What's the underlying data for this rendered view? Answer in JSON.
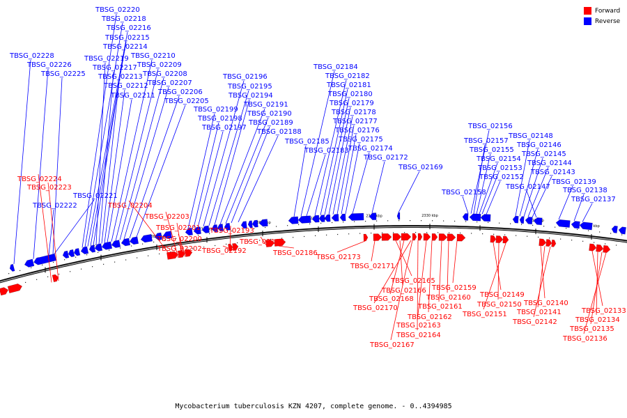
{
  "caption": "Mycobacterium tuberculosis KZN 4207, complete genome. - 0..4394985",
  "legend": [
    {
      "label": "Forward",
      "color": "#ff0000"
    },
    {
      "label": "Reverse",
      "color": "#0000ff"
    }
  ],
  "ticks": [
    "2400 kbp",
    "2390 kbp",
    "2380 kbp",
    "2370 kbp",
    "2360 kbp",
    "2350 kbp",
    "2340 kbp",
    "2330 kbp",
    "2320 kbp",
    "2310 kbp",
    "2300 kbp"
  ],
  "reverse_genes": [
    "TBSG_02228",
    "TBSG_02226",
    "TBSG_02225",
    "TBSG_02220",
    "TBSG_02218",
    "TBSG_02216",
    "TBSG_02215",
    "TBSG_02214",
    "TBSG_02219",
    "TBSG_02217",
    "TBSG_02213",
    "TBSG_02212",
    "TBSG_02211",
    "TBSG_02210",
    "TBSG_02209",
    "TBSG_02208",
    "TBSG_02207",
    "TBSG_02206",
    "TBSG_02205",
    "TBSG_02196",
    "TBSG_02195",
    "TBSG_02194",
    "TBSG_02191",
    "TBSG_02190",
    "TBSG_02189",
    "TBSG_02188",
    "TBSG_02199",
    "TBSG_02198",
    "TBSG_02197",
    "TBSG_02184",
    "TBSG_02182",
    "TBSG_02181",
    "TBSG_02180",
    "TBSG_02179",
    "TBSG_02178",
    "TBSG_02177",
    "TBSG_02176",
    "TBSG_02175",
    "TBSG_02174",
    "TBSG_02172",
    "TBSG_02185",
    "TBSG_02183",
    "TBSG_02169",
    "TBSG_02156",
    "TBSG_02157",
    "TBSG_02155",
    "TBSG_02154",
    "TBSG_02153",
    "TBSG_02152",
    "TBSG_02158",
    "TBSG_02148",
    "TBSG_02146",
    "TBSG_02145",
    "TBSG_02144",
    "TBSG_02143",
    "TBSG_02147",
    "TBSG_02139",
    "TBSG_02138",
    "TBSG_02137",
    "TBSG_02221",
    "TBSG_02222"
  ],
  "forward_genes": [
    "TBSG_02224",
    "TBSG_02223",
    "TBSG_02204",
    "TBSG_02203",
    "TBSG_02201",
    "TBSG_02200",
    "TBSG_02202",
    "TBSG_02193",
    "TBSG_02192",
    "TBSG_02187",
    "TBSG_02186",
    "TBSG_02173",
    "TBSG_02171",
    "TBSG_02165",
    "TBSG_02166",
    "TBSG_02168",
    "TBSG_02170",
    "TBSG_02167",
    "TBSG_02164",
    "TBSG_02163",
    "TBSG_02162",
    "TBSG_02161",
    "TBSG_02160",
    "TBSG_02159",
    "TBSG_02149",
    "TBSG_02150",
    "TBSG_02151",
    "TBSG_02140",
    "TBSG_02141",
    "TBSG_02142",
    "TBSG_02133",
    "TBSG_02134",
    "TBSG_02135",
    "TBSG_02136"
  ]
}
